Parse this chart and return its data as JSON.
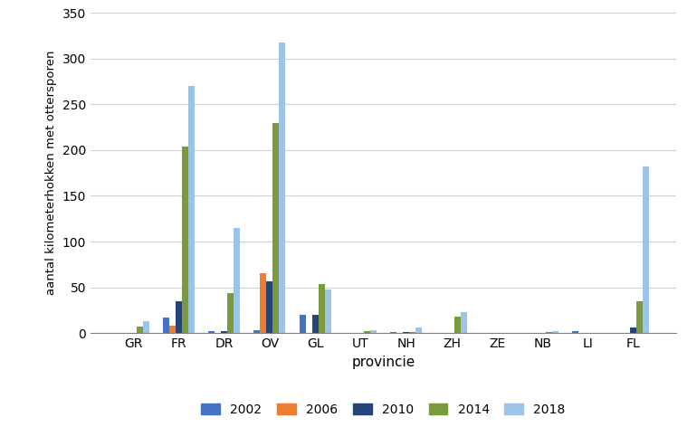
{
  "provinces": [
    "GR",
    "FR",
    "DR",
    "OV",
    "GL",
    "UT",
    "NH",
    "ZH",
    "ZE",
    "NB",
    "LI",
    "FL"
  ],
  "years": [
    "2002",
    "2006",
    "2010",
    "2014",
    "2018"
  ],
  "colors": {
    "2002": "#4472c4",
    "2006": "#ed7d31",
    "2010": "#264478",
    "2014": "#7a9a3c",
    "2018": "#9dc3e6"
  },
  "data": {
    "2002": [
      0,
      17,
      2,
      3,
      20,
      0,
      1,
      0,
      0,
      0,
      2,
      0
    ],
    "2006": [
      0,
      8,
      0,
      65,
      0,
      0,
      0,
      0,
      0,
      0,
      0,
      0
    ],
    "2010": [
      0,
      35,
      2,
      57,
      20,
      0,
      1,
      0,
      0,
      0,
      0,
      6
    ],
    "2014": [
      7,
      204,
      44,
      230,
      54,
      2,
      1,
      18,
      0,
      1,
      0,
      35
    ],
    "2018": [
      13,
      270,
      115,
      318,
      48,
      3,
      6,
      23,
      0,
      2,
      0,
      182
    ]
  },
  "ylabel": "aantal kilometerhokken met ottersporen",
  "xlabel": "provincie",
  "ylim": [
    0,
    350
  ],
  "yticks": [
    0,
    50,
    100,
    150,
    200,
    250,
    300,
    350
  ],
  "title": "",
  "bar_width": 0.14
}
